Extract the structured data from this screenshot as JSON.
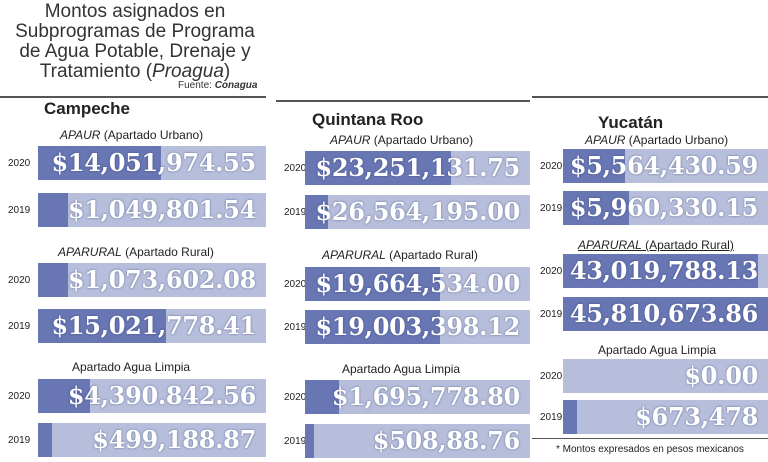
{
  "chart_data": {
    "type": "bar",
    "title_lines": [
      "Montos asignados en",
      "Subprogramas de Programa",
      "de Agua Potable, Drenaje y"
    ],
    "title_last_prefix": "Tratamiento (",
    "title_last_italic": "Proagua",
    "title_last_suffix": ")",
    "source_label": "Fuente:",
    "source_name": "Conagua",
    "footnote": "* Montos expresados en pesos mexicanos",
    "colors": {
      "fill": "#6876b4",
      "track": "#b6bedb"
    },
    "states": [
      {
        "name": "Campeche",
        "groups": [
          {
            "prefix": "",
            "italic": "APAUR",
            "suffix": " (Apartado Urbano)",
            "bars": [
              {
                "year": "2020",
                "label": "$14,051,974.55",
                "fill": 0.54
              },
              {
                "year": "2019",
                "label": "$1,049,801.54",
                "fill": 0.13
              }
            ]
          },
          {
            "prefix": "",
            "italic": "APARURAL",
            "suffix": " (Apartado Rural)",
            "bars": [
              {
                "year": "2020",
                "label": "$1,073,602.08",
                "fill": 0.13
              },
              {
                "year": "2019",
                "label": "$15,021,778.41",
                "fill": 0.56
              }
            ]
          },
          {
            "prefix": "Apartado Agua Limpia",
            "italic": "",
            "suffix": "",
            "bars": [
              {
                "year": "2020",
                "label": "$4,390.842.56",
                "fill": 0.23
              },
              {
                "year": "2019",
                "label": "$499,188.87",
                "fill": 0.06
              }
            ]
          }
        ]
      },
      {
        "name": "Quintana Roo",
        "groups": [
          {
            "prefix": "",
            "italic": "APAUR",
            "suffix": " (Apartado Urbano)",
            "bars": [
              {
                "year": "2020",
                "label": "$23,251,131.75",
                "fill": 0.65
              },
              {
                "year": "2019",
                "label": "$26,564,195.00",
                "fill": 0.1
              }
            ]
          },
          {
            "prefix": "",
            "italic": "APARURAL",
            "suffix": " (Apartado Rural)",
            "bars": [
              {
                "year": "2020",
                "label": "$19,664,534.00",
                "fill": 0.6
              },
              {
                "year": "2019",
                "label": "$19,003,398.12",
                "fill": 0.6
              }
            ]
          },
          {
            "prefix": "Apartado Agua Limpia",
            "italic": "",
            "suffix": "",
            "bars": [
              {
                "year": "2020",
                "label": "$1,695,778.80",
                "fill": 0.15
              },
              {
                "year": "2019",
                "label": "$508,88.76",
                "fill": 0.04
              }
            ]
          }
        ]
      },
      {
        "name": "Yucatán",
        "groups": [
          {
            "prefix": "",
            "italic": "APAUR",
            "suffix": " (Apartado Urbano)",
            "bars": [
              {
                "year": "2020",
                "label": "$5,564,430.59",
                "fill": 0.3
              },
              {
                "year": "2019",
                "label": "$5,960,330.15",
                "fill": 0.32
              }
            ]
          },
          {
            "prefix": "",
            "italic": "APARURAL",
            "suffix": " (Apartado Rural)",
            "underline": true,
            "bars": [
              {
                "year": "2020",
                "label": "43,019,788.13",
                "fill": 0.95
              },
              {
                "year": "2019",
                "label": "45,810,673.86",
                "fill": 1.0
              }
            ]
          },
          {
            "prefix": "Apartado Agua Limpia",
            "italic": "",
            "suffix": "",
            "bars": [
              {
                "year": "2020",
                "label": "$0.00",
                "fill": 0.0
              },
              {
                "year": "2019",
                "label": "$673,478",
                "fill": 0.07
              }
            ]
          }
        ]
      }
    ]
  }
}
